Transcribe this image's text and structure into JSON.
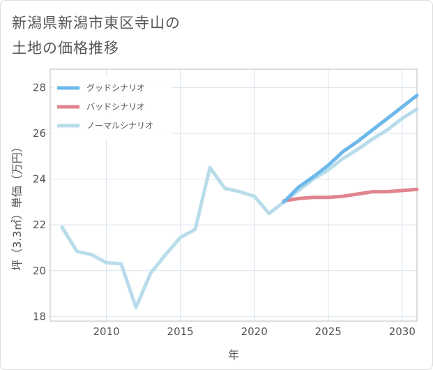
{
  "title_line1": "新潟県新潟市東区寺山の",
  "title_line2": "土地の価格推移",
  "chart_data": {
    "type": "line",
    "xlabel": "年",
    "ylabel": "坪（3.3㎡）単価（万円）",
    "xlim": [
      2006.2,
      2031
    ],
    "ylim": [
      17.8,
      28.8
    ],
    "xticks": [
      2010,
      2015,
      2020,
      2025,
      2030
    ],
    "yticks": [
      18,
      20,
      22,
      24,
      26,
      28
    ],
    "grid": true,
    "legend_position": "top-left",
    "series": [
      {
        "name": "グッドシナリオ",
        "color": "#6cb8ea",
        "x": [
          2022,
          2023,
          2024,
          2025,
          2026,
          2027,
          2028,
          2029,
          2030,
          2031
        ],
        "y": [
          23.0,
          23.65,
          24.1,
          24.6,
          25.2,
          25.65,
          26.15,
          26.65,
          27.15,
          27.65
        ]
      },
      {
        "name": "バッドシナリオ",
        "color": "#e0848e",
        "x": [
          2022,
          2023,
          2024,
          2025,
          2026,
          2027,
          2028,
          2029,
          2030,
          2031
        ],
        "y": [
          23.05,
          23.15,
          23.2,
          23.2,
          23.25,
          23.35,
          23.45,
          23.45,
          23.5,
          23.55
        ]
      },
      {
        "name": "ノーマルシナリオ",
        "color": "#b8dcea",
        "x": [
          2007,
          2008,
          2009,
          2010,
          2011,
          2012,
          2013,
          2014,
          2015,
          2016,
          2017,
          2018,
          2019,
          2020,
          2021,
          2022,
          2023,
          2024,
          2025,
          2026,
          2027,
          2028,
          2029,
          2030,
          2031
        ],
        "y": [
          21.9,
          20.85,
          20.7,
          20.35,
          20.3,
          18.4,
          19.9,
          20.7,
          21.45,
          21.8,
          24.5,
          23.6,
          23.45,
          23.25,
          22.5,
          23.0,
          23.5,
          24.0,
          24.4,
          24.9,
          25.3,
          25.75,
          26.15,
          26.65,
          27.05
        ]
      }
    ]
  }
}
